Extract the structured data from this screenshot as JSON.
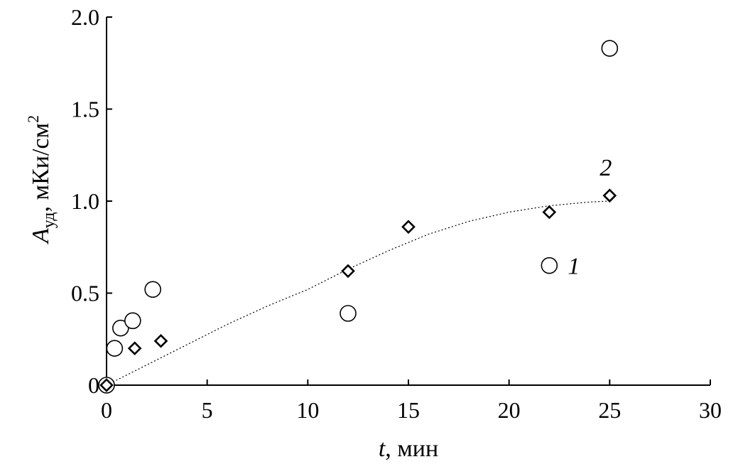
{
  "chart_data": {
    "type": "scatter",
    "xlabel_italic": "t",
    "xlabel_rest": ", мин",
    "ylabel_main": "A",
    "ylabel_sub": "уд",
    "ylabel_unit": ", мКи/см",
    "ylabel_sup": "2",
    "xlim": [
      0,
      30
    ],
    "ylim": [
      0,
      2.0
    ],
    "x_ticks": [
      "0",
      "5",
      "10",
      "15",
      "20",
      "25",
      "30"
    ],
    "y_ticks": [
      "0",
      "0.5",
      "1.0",
      "1.5",
      "2.0"
    ],
    "grid": false,
    "series": [
      {
        "name": "1",
        "marker": "circle",
        "points": [
          {
            "x": 0.0,
            "y": 0.0
          },
          {
            "x": 0.4,
            "y": 0.2
          },
          {
            "x": 0.7,
            "y": 0.31
          },
          {
            "x": 1.3,
            "y": 0.35
          },
          {
            "x": 2.3,
            "y": 0.52
          },
          {
            "x": 12.0,
            "y": 0.39
          },
          {
            "x": 22.0,
            "y": 0.65
          },
          {
            "x": 25.0,
            "y": 1.83
          }
        ]
      },
      {
        "name": "2",
        "marker": "diamond",
        "points": [
          {
            "x": 0.0,
            "y": 0.0
          },
          {
            "x": 1.4,
            "y": 0.2
          },
          {
            "x": 2.7,
            "y": 0.24
          },
          {
            "x": 12.0,
            "y": 0.62
          },
          {
            "x": 15.0,
            "y": 0.86
          },
          {
            "x": 22.0,
            "y": 0.94
          },
          {
            "x": 25.0,
            "y": 1.03
          }
        ],
        "fit": {
          "style": "dotted",
          "x": [
            0,
            2,
            4,
            6,
            8,
            10,
            12,
            14,
            16,
            18,
            20,
            22,
            24,
            25
          ],
          "y": [
            0.0,
            0.11,
            0.22,
            0.33,
            0.43,
            0.52,
            0.63,
            0.73,
            0.82,
            0.89,
            0.94,
            0.975,
            0.995,
            1.0
          ]
        }
      }
    ]
  }
}
